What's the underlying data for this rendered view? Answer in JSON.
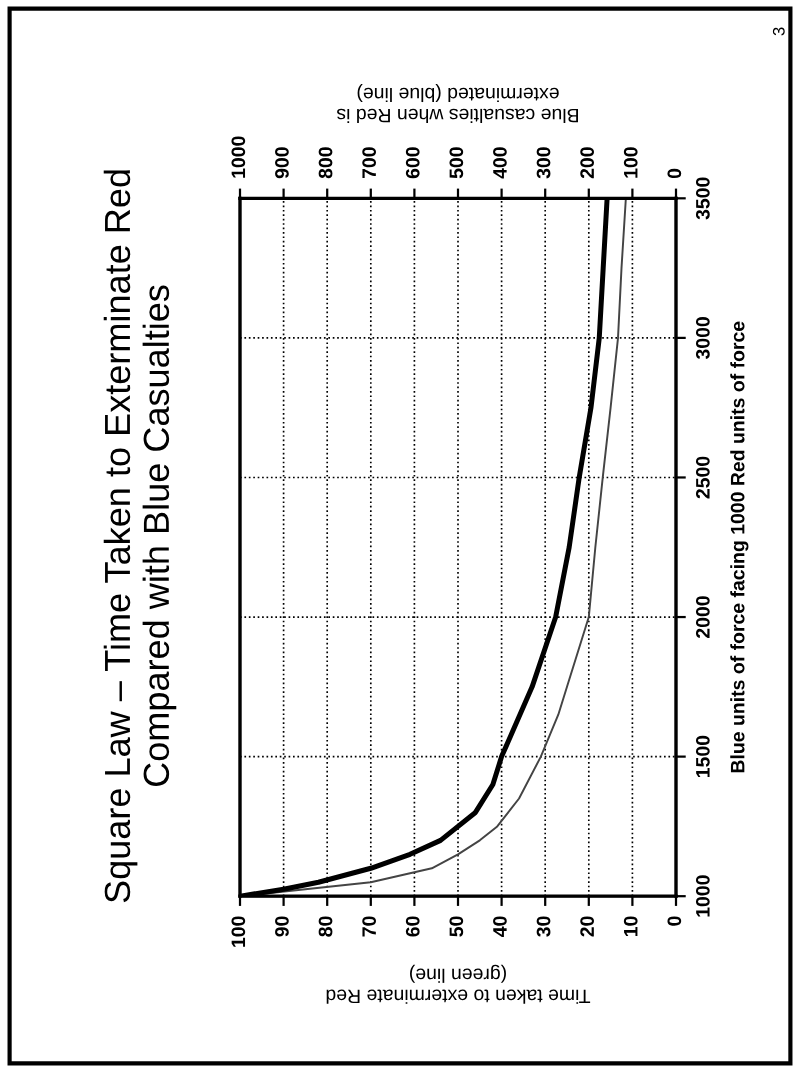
{
  "chart_data": {
    "type": "line",
    "title": "Square Law – Time Taken to Exterminate Red\nCompared with Blue Casualties",
    "xlabel": "Time taken to exterminate Red\n(green line)",
    "ylabel": "Blue units of force facing 1000 Red units of force",
    "x2label": "Blue casualties when Red is\nexterminated (blue line)",
    "annotations": [
      "3"
    ],
    "series": [
      {
        "color": "#000000",
        "axis": "x2",
        "x": [
          1000,
          900,
          820,
          700,
          610,
          540,
          460,
          420,
          400,
          330,
          276,
          245,
          222,
          195,
          176,
          167,
          158
        ],
        "values": [
          1000,
          1025,
          1050,
          1100,
          1150,
          1200,
          1300,
          1400,
          1500,
          1750,
          2000,
          2250,
          2500,
          2750,
          3000,
          3250,
          3500
        ]
      },
      {
        "color": "#444444",
        "x": [
          100,
          85,
          70,
          56,
          50,
          45,
          41,
          36,
          31,
          27,
          25,
          20,
          18.5,
          16.8,
          15,
          13.3,
          12.5,
          11.5
        ],
        "values": [
          1000,
          1025,
          1050,
          1100,
          1150,
          1200,
          1250,
          1350,
          1500,
          1650,
          1750,
          2000,
          2250,
          2500,
          2750,
          3000,
          3250,
          3500
        ]
      }
    ],
    "xlim": [
      100,
      0
    ],
    "xticks": [
      100,
      90,
      80,
      70,
      60,
      50,
      40,
      30,
      20,
      10,
      0
    ],
    "x2lim": [
      1000,
      0
    ],
    "x2ticks": [
      1000,
      900,
      800,
      700,
      600,
      500,
      400,
      300,
      200,
      100,
      0
    ],
    "ylim": [
      1000,
      3500
    ],
    "yticks": [
      1000,
      1500,
      2000,
      2500,
      3000,
      3500
    ],
    "grid": true
  }
}
